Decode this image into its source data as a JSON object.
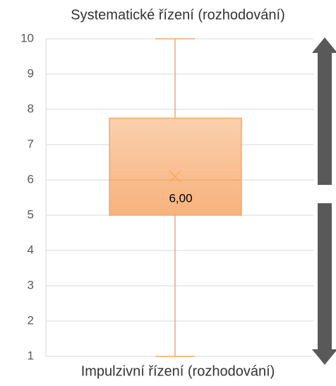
{
  "chart_data": {
    "type": "box",
    "title": "Systematické řízení (rozhodování)",
    "subtitle": "Impulzivní řízení (rozhodování)",
    "ylim": [
      1,
      10
    ],
    "yticks": [
      1,
      2,
      3,
      4,
      5,
      6,
      7,
      8,
      9,
      10
    ],
    "grid": true,
    "color": "#f5a965",
    "stats": {
      "min": 1,
      "q1": 5,
      "median": 6,
      "q3": 7.75,
      "max": 10,
      "mean": 6.1
    },
    "value_labels": {
      "median": "6,00"
    }
  }
}
